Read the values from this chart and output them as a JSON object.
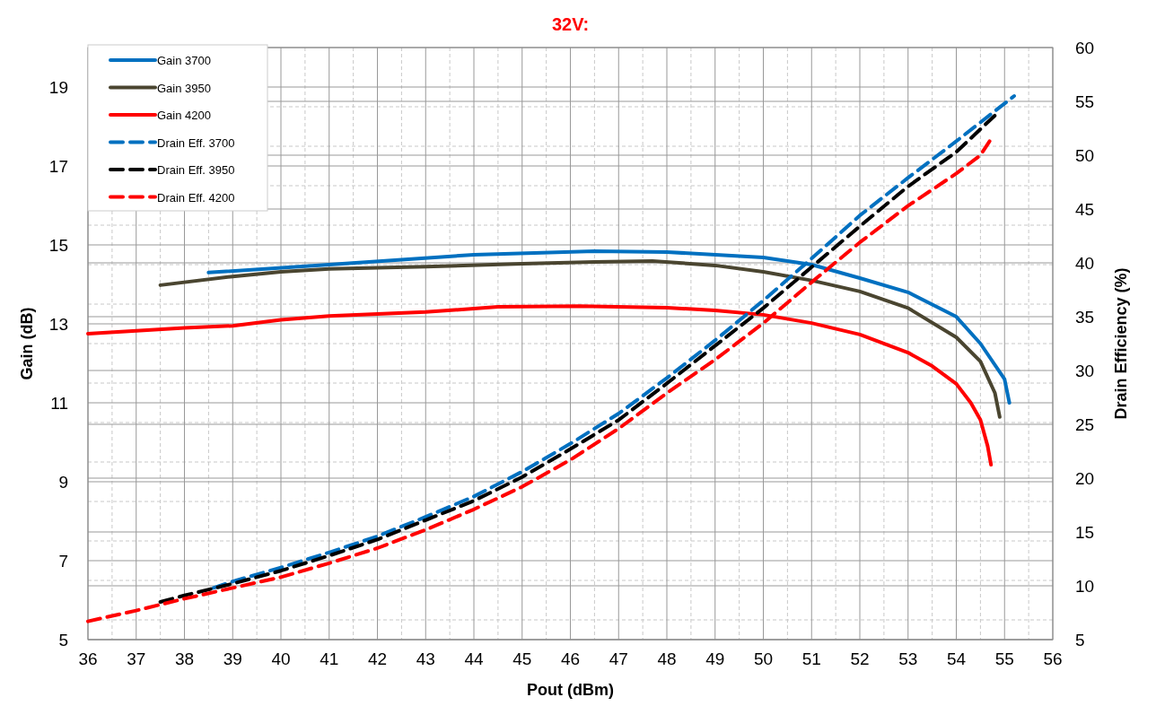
{
  "chart_data": {
    "type": "line",
    "title": "32V:",
    "xlabel": "Pout (dBm)",
    "ylabel": "Gain (dB)",
    "y2label": "Drain Efficiency (%)",
    "xlim": [
      36,
      56
    ],
    "xticks": [
      36,
      37,
      38,
      39,
      40,
      41,
      42,
      43,
      44,
      45,
      46,
      47,
      48,
      49,
      50,
      51,
      52,
      53,
      54,
      55,
      56
    ],
    "ylim": [
      5,
      20
    ],
    "yticks": [
      5,
      7,
      9,
      11,
      13,
      15,
      17,
      19
    ],
    "y2lim": [
      5,
      60
    ],
    "y2ticks": [
      5,
      10,
      15,
      20,
      25,
      30,
      35,
      40,
      45,
      50,
      55,
      60
    ],
    "grid": true,
    "legend": "top left",
    "marker": "none",
    "series": [
      {
        "name": "Gain 3700",
        "color": "#0070c0",
        "line_style": "solid",
        "x": [
          38.5,
          41,
          44,
          46.5,
          48,
          50,
          51,
          52,
          53,
          54,
          54.5,
          55,
          55.1
        ],
        "values": [
          14.3,
          14.5,
          14.75,
          14.84,
          14.82,
          14.68,
          14.5,
          14.16,
          13.8,
          13.18,
          12.5,
          11.6,
          11.0
        ]
      },
      {
        "name": "Gain 3950",
        "color": "#4a4530",
        "line_style": "solid",
        "x": [
          37.5,
          39,
          40,
          41,
          43,
          45,
          46.5,
          47.7,
          49,
          50,
          51,
          52,
          53,
          54,
          54.5,
          54.8,
          54.9
        ],
        "values": [
          13.98,
          14.2,
          14.32,
          14.39,
          14.45,
          14.52,
          14.57,
          14.59,
          14.48,
          14.32,
          14.1,
          13.82,
          13.4,
          12.66,
          12.05,
          11.25,
          10.64
        ]
      },
      {
        "name": "Gain 4200",
        "color": "#ff0000",
        "line_style": "solid",
        "x": [
          36,
          38,
          39,
          40,
          41,
          43,
          44.5,
          46.2,
          48,
          49,
          50,
          51,
          52,
          53,
          53.5,
          54,
          54.3,
          54.5,
          54.65,
          54.72
        ],
        "values": [
          12.75,
          12.9,
          12.95,
          13.1,
          13.2,
          13.3,
          13.43,
          13.45,
          13.41,
          13.34,
          13.23,
          13.02,
          12.73,
          12.27,
          11.93,
          11.48,
          11.0,
          10.57,
          9.9,
          9.43
        ]
      },
      {
        "name": "Drain Eff. 3700",
        "color": "#0070c0",
        "line_style": "dashed",
        "axis": "y2",
        "x": [
          38.6,
          39,
          40,
          41,
          42,
          43,
          44,
          45,
          46,
          47,
          48,
          49,
          50,
          51,
          52,
          53,
          54,
          55.2
        ],
        "values": [
          9.8,
          10.4,
          11.7,
          13.1,
          14.6,
          16.4,
          18.3,
          20.6,
          23.2,
          26,
          29.3,
          32.8,
          36.5,
          40.4,
          44.4,
          47.9,
          51.3,
          55.5
        ]
      },
      {
        "name": "Drain Eff. 3950",
        "color": "#000000",
        "line_style": "dashed",
        "axis": "y2",
        "x": [
          37.5,
          38,
          39,
          40,
          41,
          42,
          43,
          44,
          45,
          46,
          47,
          48,
          49,
          50,
          51,
          52,
          53,
          54,
          54.85
        ],
        "values": [
          8.5,
          9.1,
          10.2,
          11.4,
          12.8,
          14.3,
          16.1,
          17.9,
          20.1,
          22.7,
          25.4,
          28.8,
          32.3,
          35.8,
          39.6,
          43.4,
          47.1,
          50.3,
          53.9
        ]
      },
      {
        "name": "Drain Eff. 4200",
        "color": "#ff0000",
        "line_style": "dashed",
        "axis": "y2",
        "x": [
          36,
          37,
          38,
          39,
          40,
          41,
          42,
          43,
          44,
          45,
          46,
          47,
          48,
          49,
          50,
          51,
          52,
          53,
          54,
          54.5,
          54.75
        ],
        "values": [
          6.7,
          7.7,
          8.8,
          9.8,
          10.8,
          12.1,
          13.5,
          15.2,
          17.1,
          19.2,
          21.7,
          24.6,
          27.9,
          31,
          34.4,
          38.2,
          41.9,
          45.3,
          48.3,
          50,
          51.7
        ]
      }
    ]
  }
}
